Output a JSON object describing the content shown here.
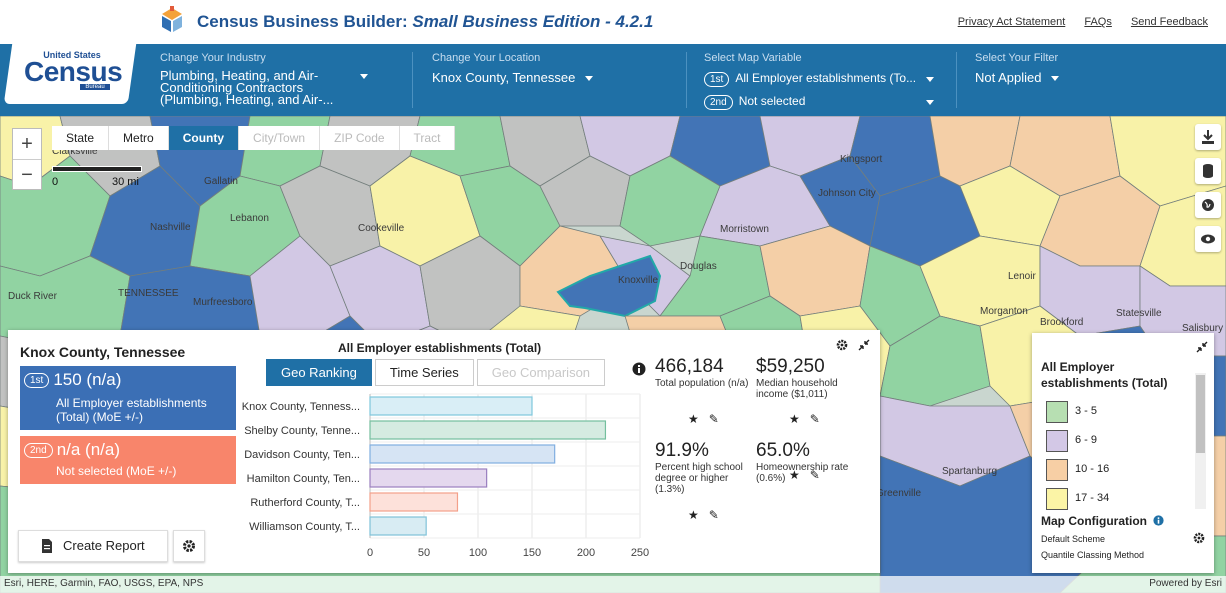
{
  "app": {
    "title_main": "Census Business Builder: ",
    "title_em": "Small Business Edition - 4.2.1",
    "links": [
      "Privacy Act Statement",
      "FAQs",
      "Send Feedback"
    ],
    "logo": {
      "top": "United States",
      "main": "Census",
      "bureau": "Bureau"
    }
  },
  "filters": {
    "industry": {
      "label": "Change Your Industry",
      "value_line1": "Plumbing, Heating, and Air-",
      "value_line2": "Conditioning Contractors",
      "value_line3": "(Plumbing, Heating, and Air-..."
    },
    "location": {
      "label": "Change Your Location",
      "value": "Knox County, Tennessee"
    },
    "map_variable": {
      "label": "Select Map Variable",
      "first_badge": "1st",
      "first_value": "All Employer establishments (To...",
      "second_badge": "2nd",
      "second_value": "Not selected"
    },
    "filter": {
      "label": "Select Your Filter",
      "value": "Not Applied"
    }
  },
  "map": {
    "geo_tabs": [
      "State",
      "Metro",
      "County",
      "City/Town",
      "ZIP Code",
      "Tract"
    ],
    "active_tab": "County",
    "scale": {
      "zero": "0",
      "distance": "30 mi"
    },
    "place_labels": [
      {
        "name": "Clarksville"
      },
      {
        "name": "Gallatin"
      },
      {
        "name": "Lebanon"
      },
      {
        "name": "Nashville"
      },
      {
        "name": "TENNESSEE"
      },
      {
        "name": "Murfreesboro"
      },
      {
        "name": "Cookeville"
      },
      {
        "name": "Knoxville"
      },
      {
        "name": "Morristown"
      },
      {
        "name": "Kingsport"
      },
      {
        "name": "Johnson City"
      },
      {
        "name": "Lenoir"
      },
      {
        "name": "Morganton"
      },
      {
        "name": "Brookford"
      },
      {
        "name": "Statesville"
      },
      {
        "name": "Salisbury"
      },
      {
        "name": "Spartanburg"
      },
      {
        "name": "Greenville"
      },
      {
        "name": "Douglas"
      },
      {
        "name": "Duck River"
      }
    ],
    "attribution_left": "Esri, HERE, Garmin, FAO, USGS, EPA, NPS",
    "attribution_right": "Powered by Esri"
  },
  "panel": {
    "title": "Knox County, Tennessee",
    "card1": {
      "badge": "1st",
      "value": "150 (n/a)",
      "desc_line1": "All Employer establishments",
      "desc_line2": "(Total) (MoE +/-)"
    },
    "card2": {
      "badge": "2nd",
      "value": "n/a (n/a)",
      "desc": "Not selected (MoE +/-)"
    },
    "create_report": "Create Report",
    "chart_tabs": [
      "Geo Ranking",
      "Time Series",
      "Geo Comparison"
    ],
    "chart_active": "Geo Ranking"
  },
  "chart_data": {
    "type": "bar",
    "title": "All Employer establishments (Total)",
    "orientation": "horizontal",
    "categories": [
      "Knox County, Tenness...",
      "Shelby County, Tenne...",
      "Davidson County, Ten...",
      "Hamilton County, Ten...",
      "Rutherford County, T...",
      "Williamson County, T..."
    ],
    "values": [
      150,
      218,
      171,
      108,
      81,
      52
    ],
    "colors": [
      "#d9eef6",
      "#d5ebe1",
      "#d6e4f4",
      "#e4d8ee",
      "#fde1da",
      "#d8ecf3"
    ],
    "strokes": [
      "#7fc7dd",
      "#74bf9e",
      "#80aee0",
      "#9a7fbf",
      "#f3a08a",
      "#7fc2d8"
    ],
    "xlim": [
      0,
      250
    ],
    "xticks": [
      0,
      50,
      100,
      150,
      200,
      250
    ],
    "grid": true
  },
  "stats": [
    {
      "value": "466,184",
      "label": "Total population (n/a)"
    },
    {
      "value": "$59,250",
      "label": "Median household income ($1,011)"
    },
    {
      "value": "91.9%",
      "label": "Percent high school degree or higher (1.3%)"
    },
    {
      "value": "65.0%",
      "label": "Homeownership rate (0.6%)"
    }
  ],
  "legend": {
    "title": "All Employer establishments (Total)",
    "items": [
      {
        "label": "3 - 5",
        "color": "#b7dfb2"
      },
      {
        "label": "6 - 9",
        "color": "#d3c8e6"
      },
      {
        "label": "10 - 16",
        "color": "#f7cfa5"
      },
      {
        "label": "17 - 34",
        "color": "#fbf4a6"
      }
    ],
    "config_title": "Map Configuration",
    "scheme": "Default Scheme",
    "method": "Quantile Classing Method"
  },
  "colors": {
    "header_blue": "#1f70a6",
    "title_blue": "#205493",
    "card1": "#3b6fb5",
    "card2": "#f8856b"
  }
}
